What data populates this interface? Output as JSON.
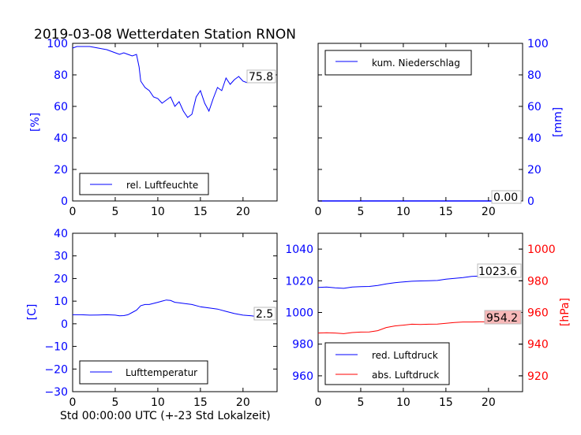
{
  "title": "2019-03-08 Wetterdaten Station RNON",
  "xlabel": "Std 00:00:00 UTC (+-23 Std Lokalzeit)",
  "colors": {
    "blue": "#0000ff",
    "red": "#ff0000",
    "label_box_red": "#f7b8b8"
  },
  "chart_data": [
    {
      "type": "line",
      "xlim": [
        0,
        24
      ],
      "ylim": [
        0,
        100
      ],
      "ylabel": "[%]",
      "legend": "bottom-left",
      "series": [
        {
          "name": "rel. Luftfeuchte",
          "color": "#0000ff",
          "x": [
            0,
            0.5,
            1,
            2,
            3,
            4,
            5,
            5.5,
            6,
            6.5,
            7,
            7.5,
            7.8,
            8,
            8.5,
            9,
            9.5,
            10,
            10.5,
            11,
            11.5,
            12,
            12.5,
            13,
            13.5,
            14,
            14.5,
            15,
            15.5,
            16,
            16.5,
            17,
            17.5,
            18,
            18.5,
            19,
            19.5,
            20,
            20.5,
            21,
            21.5,
            22,
            22.5,
            23
          ],
          "y": [
            97,
            98,
            98,
            98,
            97,
            96,
            94,
            93,
            94,
            93,
            92,
            93,
            85,
            76,
            72,
            70,
            66,
            65,
            62,
            64,
            66,
            60,
            63,
            57,
            53,
            55,
            66,
            70,
            62,
            57,
            65,
            72,
            70,
            78,
            74,
            77,
            79,
            76,
            75,
            79,
            77,
            77,
            78,
            75.8
          ]
        }
      ],
      "value_label": "75.8"
    },
    {
      "type": "line",
      "xlim": [
        0,
        24
      ],
      "ylim": [
        0,
        100
      ],
      "ylabel": "[mm]",
      "legend": "top-left",
      "series": [
        {
          "name": "kum. Niederschlag",
          "color": "#0000ff",
          "x": [
            0,
            23
          ],
          "y": [
            0,
            0
          ]
        }
      ],
      "value_label": "0.00"
    },
    {
      "type": "line",
      "xlim": [
        0,
        24
      ],
      "ylim": [
        -30,
        40
      ],
      "ylabel": "[C]",
      "legend": "bottom-left",
      "series": [
        {
          "name": "Lufttemperatur",
          "color": "#0000ff",
          "x": [
            0,
            1,
            2,
            3,
            4,
            5,
            5.5,
            6,
            6.5,
            7,
            7.5,
            8,
            8.5,
            9,
            9.5,
            10,
            10.5,
            11,
            11.5,
            12,
            12.5,
            13,
            14,
            15,
            16,
            17,
            18,
            19,
            20,
            21,
            22,
            23
          ],
          "y": [
            4,
            4,
            3.8,
            3.9,
            4,
            3.8,
            3.5,
            3.6,
            4,
            5,
            6,
            8,
            8.5,
            8.5,
            9,
            9.5,
            10,
            10.5,
            10.3,
            9.5,
            9.3,
            9,
            8.5,
            7.5,
            7,
            6.5,
            5.5,
            4.5,
            3.8,
            3.5,
            3.0,
            2.5
          ]
        }
      ],
      "value_label": "2.5"
    },
    {
      "type": "line",
      "xlim": [
        0,
        24
      ],
      "ylim": [
        950,
        1050
      ],
      "yticks": [
        960,
        980,
        1000,
        1020,
        1040
      ],
      "ylim_right": [
        910,
        1010
      ],
      "yticks_right": [
        920,
        940,
        960,
        980,
        1000
      ],
      "ylabel_right": "[hPa]",
      "legend": "bottom-left",
      "series": [
        {
          "name": "red. Luftdruck",
          "color": "#0000ff",
          "axis": "left",
          "x": [
            0,
            1,
            2,
            3,
            4,
            5,
            6,
            7,
            8,
            9,
            10,
            11,
            12,
            13,
            14,
            15,
            16,
            17,
            18,
            19,
            20,
            21,
            22,
            23
          ],
          "y": [
            1015.8,
            1016,
            1015.5,
            1015.2,
            1016,
            1016.3,
            1016.4,
            1017,
            1018,
            1018.8,
            1019.3,
            1019.7,
            1019.9,
            1020,
            1020.2,
            1021,
            1021.5,
            1022,
            1022.8,
            1023,
            1023.2,
            1023.4,
            1023.5,
            1023.6
          ]
        },
        {
          "name": "abs. Luftdruck",
          "color": "#ff0000",
          "axis": "right",
          "x": [
            0,
            1,
            2,
            3,
            4,
            5,
            6,
            7,
            8,
            9,
            10,
            11,
            12,
            13,
            14,
            15,
            16,
            17,
            18,
            19,
            20,
            21,
            22,
            23
          ],
          "y": [
            947,
            947.2,
            947,
            946.6,
            947.3,
            947.6,
            947.7,
            948.5,
            950.5,
            951.5,
            952,
            952.6,
            952.4,
            952.6,
            952.7,
            953.2,
            953.7,
            954,
            954,
            954.1,
            954.1,
            954.2,
            954.2,
            954.2
          ]
        }
      ],
      "value_label_left": "1023.6",
      "value_label_right": "954.2"
    }
  ]
}
